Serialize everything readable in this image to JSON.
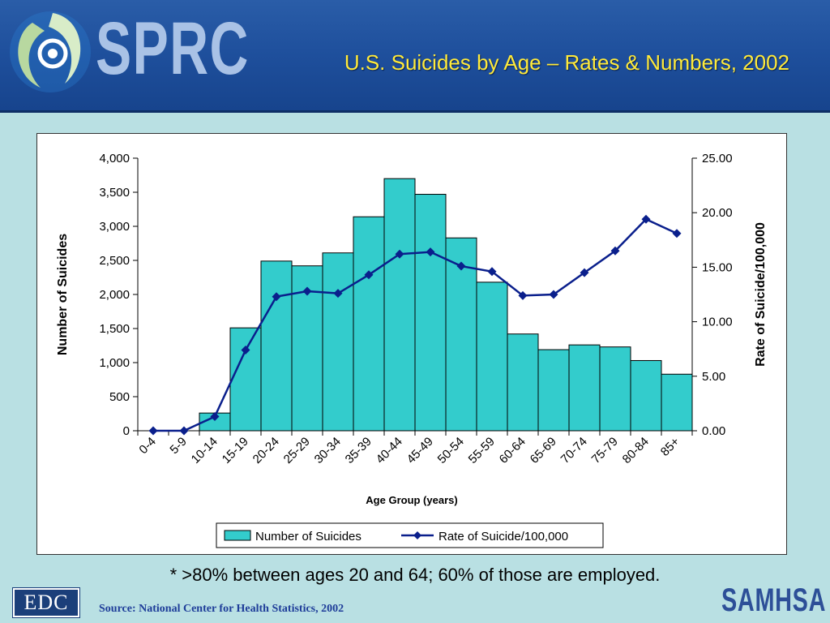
{
  "header": {
    "logo_text": "SPRC",
    "title": "U.S. Suicides by Age – Rates & Numbers, 2002"
  },
  "footnote": "* >80% between ages 20 and 64;  60% of those are employed.",
  "footer": {
    "edc_logo": "EDC",
    "source": "Source:  National Center for Health Statistics, 2002",
    "samhsa_logo": "SAMHSA"
  },
  "colors": {
    "bar_fill": "#33cccc",
    "line": "#0a1f8c",
    "title": "#ffea3a"
  },
  "chart_data": {
    "type": "bar",
    "categories": [
      "0-4",
      "5-9",
      "10-14",
      "15-19",
      "20-24",
      "25-29",
      "30-34",
      "35-39",
      "40-44",
      "45-49",
      "50-54",
      "55-59",
      "60-64",
      "65-69",
      "70-74",
      "75-79",
      "80-84",
      "85+"
    ],
    "series": [
      {
        "name": "Number of Suicides",
        "type": "bar",
        "axis": "left",
        "values": [
          0,
          0,
          260,
          1510,
          2490,
          2420,
          2610,
          3140,
          3700,
          3470,
          2830,
          2180,
          1420,
          1190,
          1260,
          1230,
          1030,
          830
        ]
      },
      {
        "name": "Rate of Suicide/100,000",
        "type": "line",
        "axis": "right",
        "values": [
          0.0,
          0.0,
          1.3,
          7.4,
          12.3,
          12.8,
          12.6,
          14.3,
          16.2,
          16.4,
          15.1,
          14.6,
          12.4,
          12.5,
          14.5,
          16.5,
          19.4,
          18.1
        ]
      }
    ],
    "xlabel": "Age Group (years)",
    "ylabel": "Number of Suicides",
    "y2label": "Rate of Suicide/100,000",
    "ylim": [
      0,
      4000
    ],
    "y2lim": [
      0,
      25
    ],
    "yticks": [
      "0",
      "500",
      "1,000",
      "1,500",
      "2,000",
      "2,500",
      "3,000",
      "3,500",
      "4,000"
    ],
    "y2ticks": [
      "0.00",
      "5.00",
      "10.00",
      "15.00",
      "20.00",
      "25.00"
    ],
    "legend_position": "bottom",
    "grid": false
  }
}
